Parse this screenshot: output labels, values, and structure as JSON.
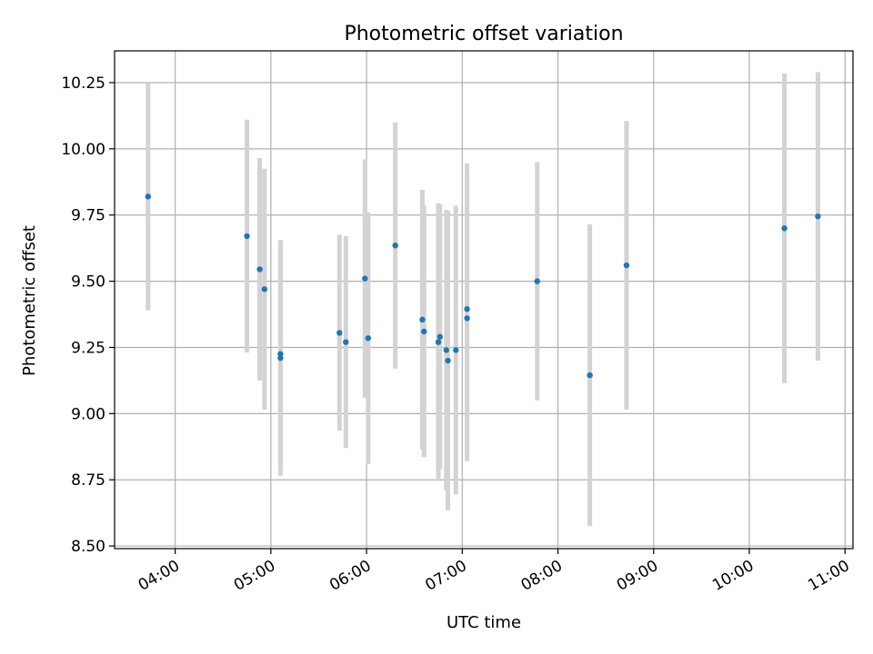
{
  "chart_data": {
    "type": "scatter",
    "title": "Photometric offset variation",
    "xlabel": "UTC time",
    "ylabel": "Photometric offset",
    "grid": true,
    "x_format": "HH:MM",
    "xlim": [
      "03:22",
      "11:05"
    ],
    "ylim": [
      8.49,
      10.37
    ],
    "x_ticks": [
      "04:00",
      "05:00",
      "06:00",
      "07:00",
      "08:00",
      "09:00",
      "10:00",
      "11:00"
    ],
    "y_ticks": [
      "8.50",
      "8.75",
      "9.00",
      "9.25",
      "9.50",
      "9.75",
      "10.00",
      "10.25"
    ],
    "point_color": "#1f77b4",
    "errorbar_color": "#d3d3d3",
    "points": [
      {
        "x": "03:43",
        "y": 9.82,
        "yerr": 0.43
      },
      {
        "x": "04:45",
        "y": 9.67,
        "yerr": 0.44
      },
      {
        "x": "04:53",
        "y": 9.545,
        "yerr": 0.42
      },
      {
        "x": "04:56",
        "y": 9.47,
        "yerr": 0.455
      },
      {
        "x": "05:06",
        "y": 9.225,
        "yerr": 0.43
      },
      {
        "x": "05:06",
        "y": 9.21,
        "yerr": 0.445
      },
      {
        "x": "05:43",
        "y": 9.305,
        "yerr": 0.37
      },
      {
        "x": "05:47",
        "y": 9.27,
        "yerr": 0.4
      },
      {
        "x": "05:59",
        "y": 9.51,
        "yerr": 0.45
      },
      {
        "x": "06:01",
        "y": 9.285,
        "yerr": 0.475
      },
      {
        "x": "06:18",
        "y": 9.635,
        "yerr": 0.465
      },
      {
        "x": "06:35",
        "y": 9.355,
        "yerr": 0.49
      },
      {
        "x": "06:36",
        "y": 9.31,
        "yerr": 0.475
      },
      {
        "x": "06:45",
        "y": 9.27,
        "yerr": 0.525
      },
      {
        "x": "06:46",
        "y": 9.29,
        "yerr": 0.5
      },
      {
        "x": "06:50",
        "y": 9.24,
        "yerr": 0.53
      },
      {
        "x": "06:51",
        "y": 9.2,
        "yerr": 0.565
      },
      {
        "x": "06:56",
        "y": 9.24,
        "yerr": 0.545
      },
      {
        "x": "07:03",
        "y": 9.395,
        "yerr": 0.55
      },
      {
        "x": "07:03",
        "y": 9.36,
        "yerr": 0.54
      },
      {
        "x": "07:47",
        "y": 9.5,
        "yerr": 0.45
      },
      {
        "x": "08:20",
        "y": 9.145,
        "yerr": 0.57
      },
      {
        "x": "08:43",
        "y": 9.56,
        "yerr": 0.545
      },
      {
        "x": "10:22",
        "y": 9.7,
        "yerr": 0.585
      },
      {
        "x": "10:43",
        "y": 9.745,
        "yerr": 0.545
      }
    ]
  }
}
